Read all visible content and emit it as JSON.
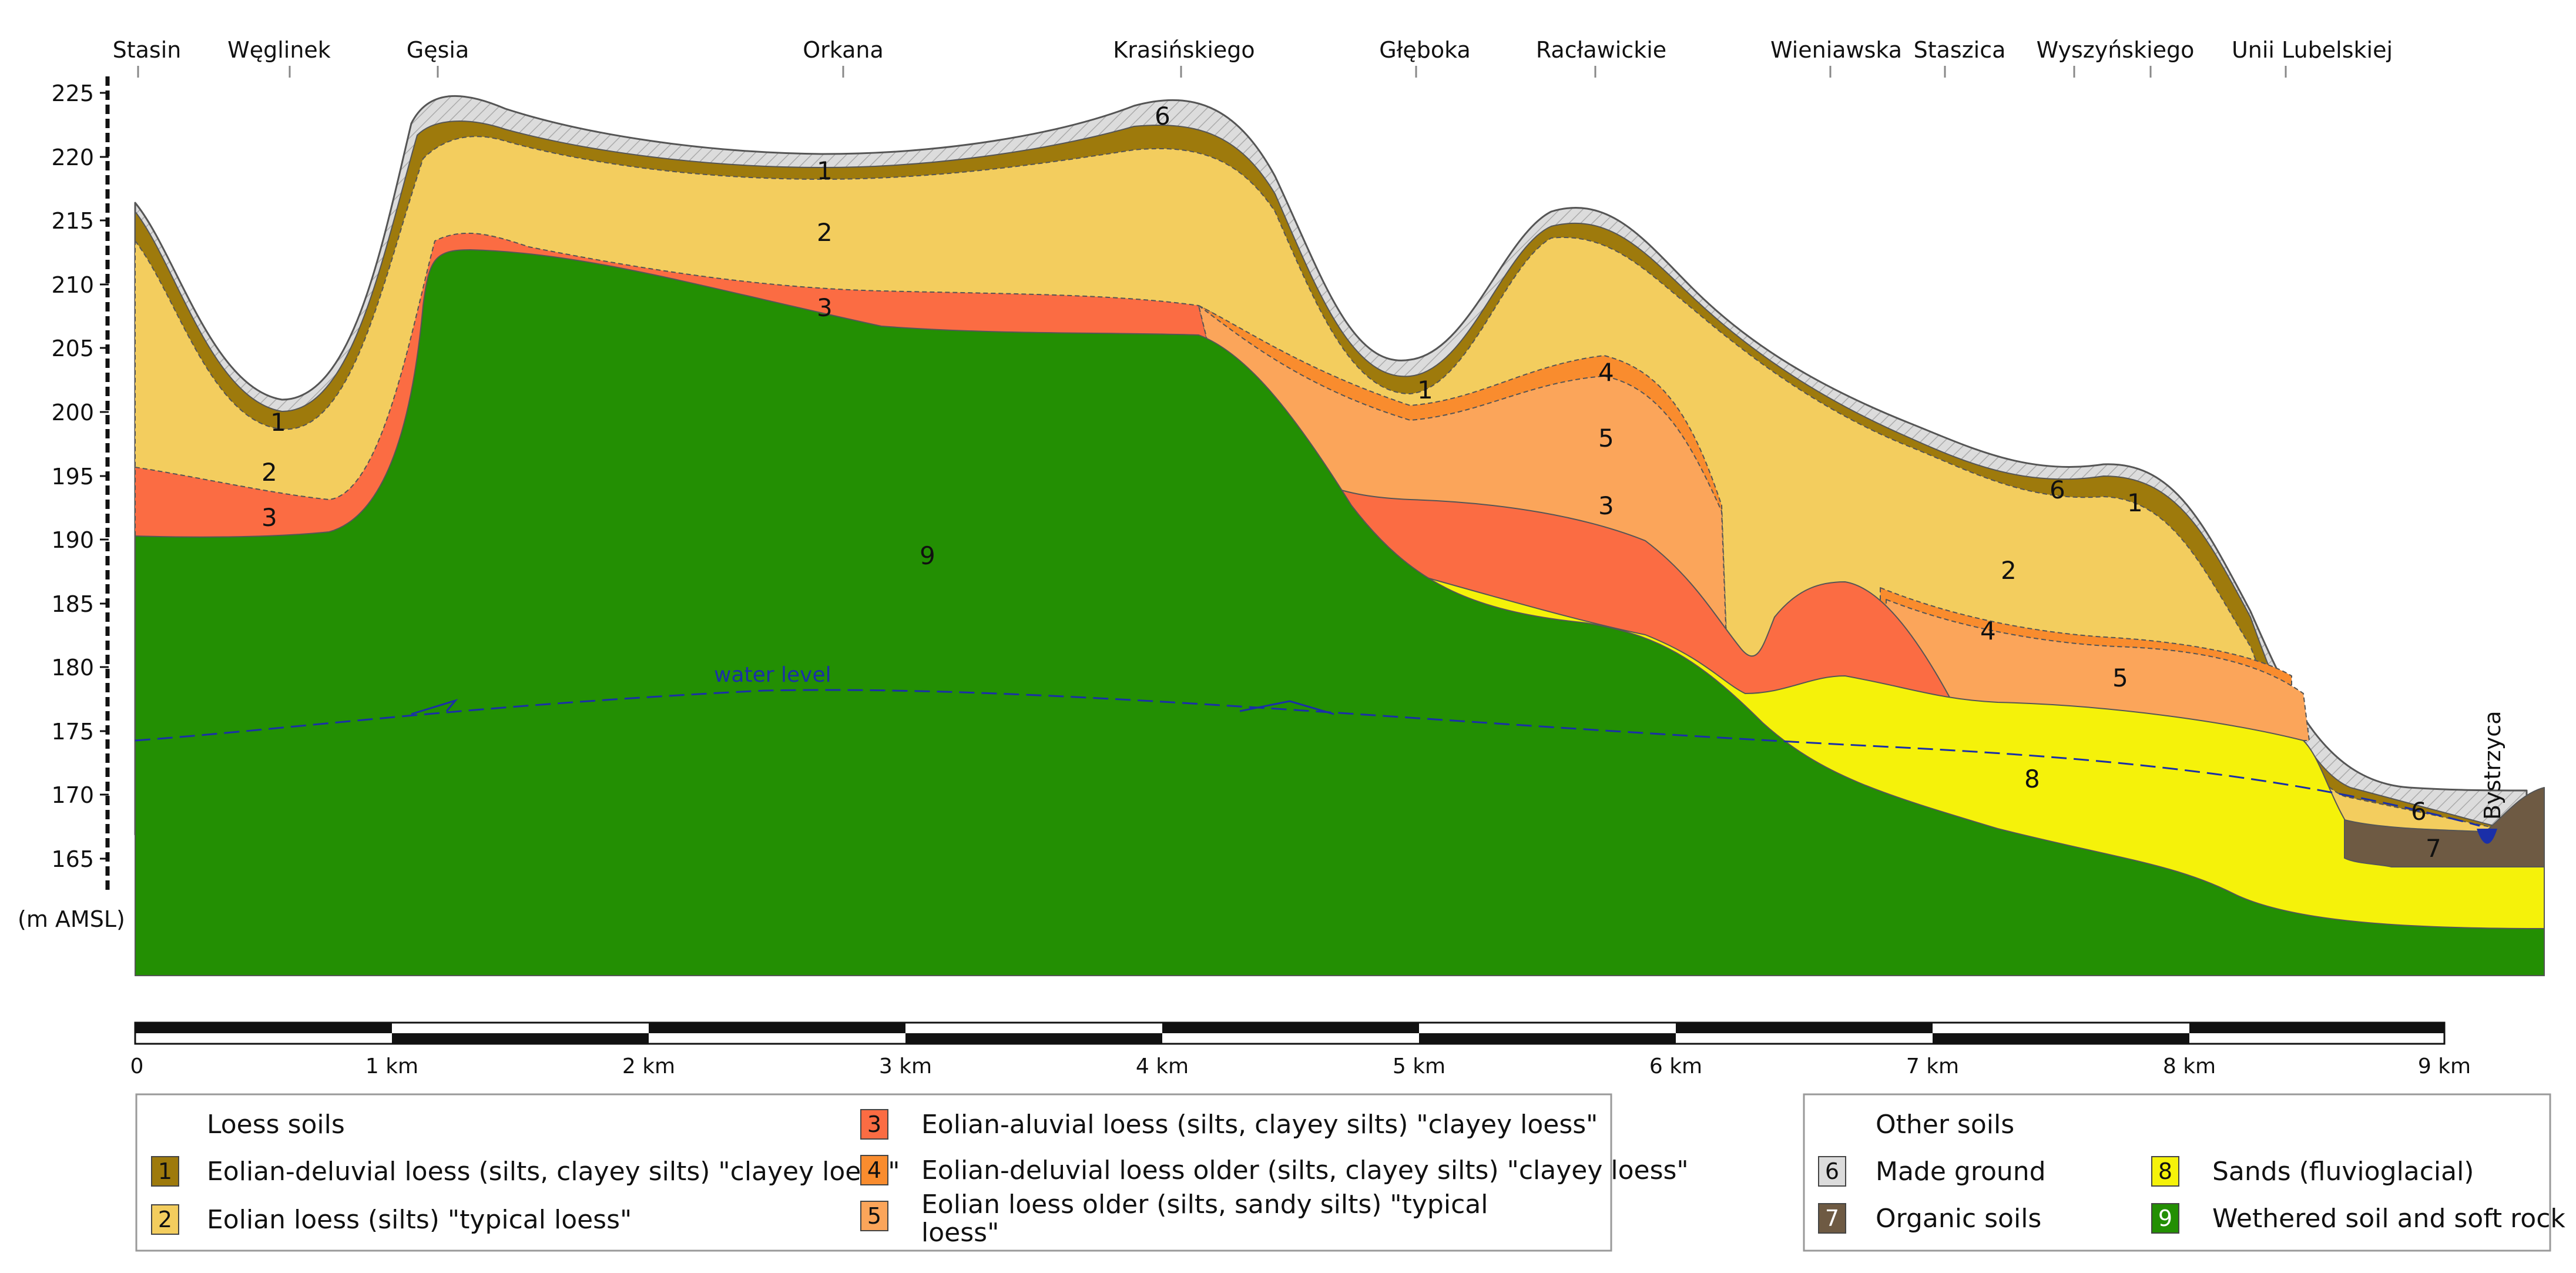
{
  "streets": [
    "Stasin",
    "Węglinek",
    "Gęsia",
    "Orkana",
    "Krasińskiego",
    "Głęboka",
    "Racławickie",
    "Wieniawska",
    "Staszica",
    "Wyszyńskiego",
    "Unii Lubelskiej"
  ],
  "elevation_ticks": [
    "225",
    "220",
    "215",
    "210",
    "205",
    "200",
    "195",
    "190",
    "185",
    "180",
    "175",
    "170",
    "165"
  ],
  "elevation_unit": "(m AMSL)",
  "water_level_label": "water level",
  "river_label": "Bystrzyca",
  "scale_labels": [
    "0",
    "1 km",
    "2 km",
    "3 km",
    "4 km",
    "5 km",
    "6 km",
    "7 km",
    "8 km",
    "9 km"
  ],
  "unit_labels": {
    "u1": "1",
    "u2": "2",
    "u3": "3",
    "u4": "4",
    "u5": "5",
    "u6": "6",
    "u7": "7",
    "u8": "8",
    "u9": "9"
  },
  "legend_loess": {
    "title": "Loess soils",
    "items": [
      {
        "num": "1",
        "text": "Eolian-deluvial loess (silts, clayey silts) \"clayey loess\"",
        "color": "#9e7a0c"
      },
      {
        "num": "2",
        "text": "Eolian loess (silts) \"typical loess\"",
        "color": "#f3cd5e"
      },
      {
        "num": "3",
        "text": "Eolian-aluvial loess (silts, clayey silts) \"clayey loess\"",
        "color": "#fb6c43"
      },
      {
        "num": "4",
        "text": "Eolian-deluvial loess older (silts, clayey silts) \"clayey loess\"",
        "color": "#f98c2e"
      },
      {
        "num": "5",
        "text_line1": "Eolian loess older (silts, sandy silts) \"typical",
        "text_line2": "loess\"",
        "color": "#fba55a"
      }
    ]
  },
  "legend_other": {
    "title": "Other soils",
    "items": [
      {
        "num": "6",
        "text": "Made ground",
        "color": "#dcdcdc"
      },
      {
        "num": "7",
        "text": "Organic soils",
        "color": "#6e5a43"
      },
      {
        "num": "8",
        "text": "Sands (fluvioglacial)",
        "color": "#f5f20a"
      },
      {
        "num": "9",
        "text": "Wethered soil and soft rock",
        "color": "#238f03"
      }
    ]
  },
  "colors": {
    "made_ground": "#dcdcdc",
    "clayey_loess": "#9e7a0c",
    "typical_loess": "#f3cd5e",
    "aluvial_loess": "#fb6c43",
    "older_clayey": "#f98c2e",
    "older_typical": "#fba55a",
    "sands": "#f5f20a",
    "organic": "#6e5a43",
    "bedrock": "#238f03",
    "water": "#1a2fa8"
  }
}
